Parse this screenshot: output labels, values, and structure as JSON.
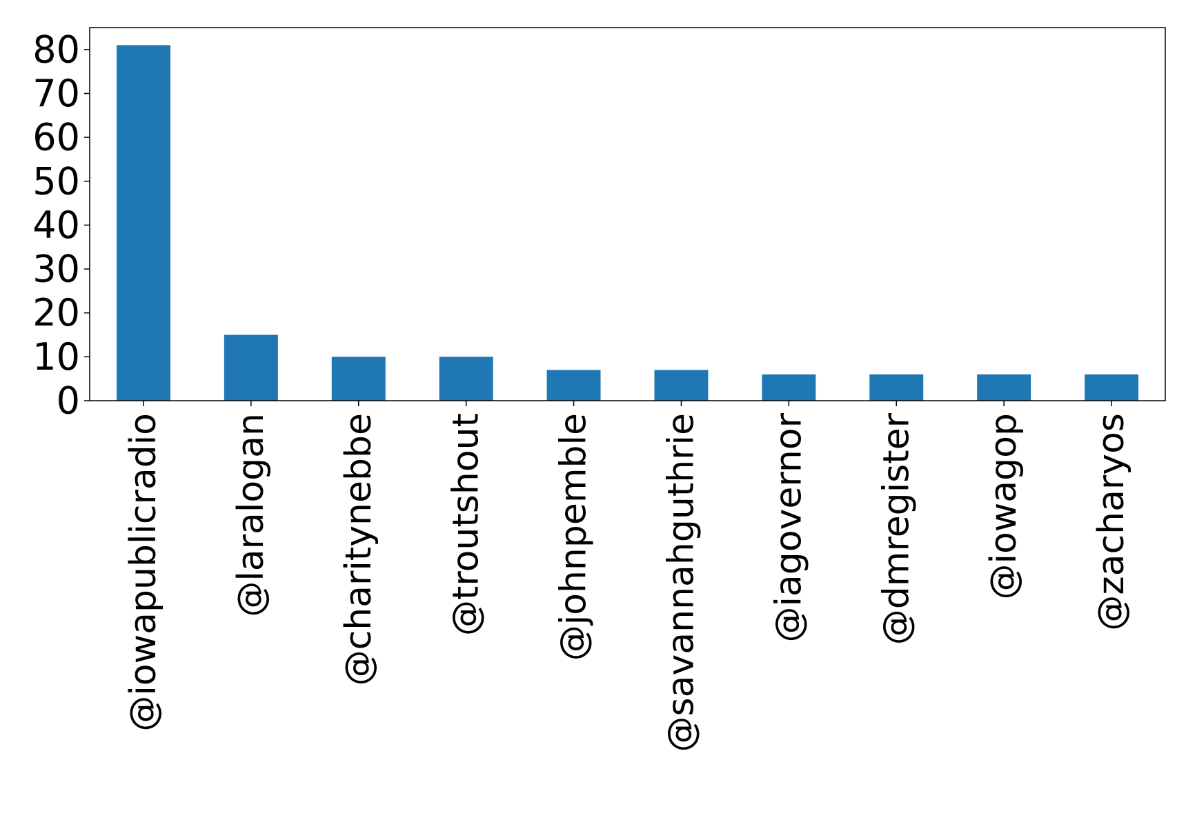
{
  "chart_data": {
    "type": "bar",
    "title": "",
    "xlabel": "",
    "ylabel": "",
    "categories": [
      "@iowapublicradio",
      "@laralogan",
      "@charitynebbe",
      "@troutshout",
      "@johnpemble",
      "@savannahguthrie",
      "@iagovernor",
      "@dmregister",
      "@iowagop",
      "@zacharyos"
    ],
    "values": [
      81,
      15,
      10,
      10,
      7,
      7,
      6,
      6,
      6,
      6
    ],
    "yticks": [
      0,
      10,
      20,
      30,
      40,
      50,
      60,
      70,
      80
    ],
    "ylim": [
      0,
      85
    ],
    "grid": false,
    "legend": "none",
    "bar_color": "#1f77b4"
  }
}
